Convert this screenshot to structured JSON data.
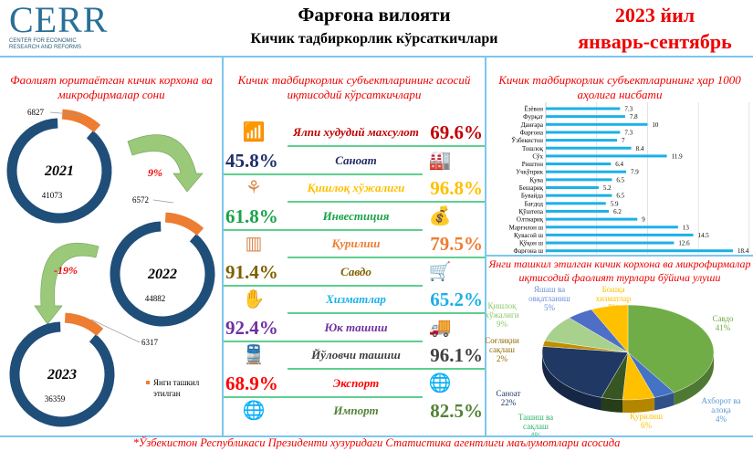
{
  "header": {
    "logo_big": "CERR",
    "logo_small_1": "CENTER FOR ECONOMIC",
    "logo_small_2": "RESEARCH AND REFORMS",
    "title": "Фарғона вилояти",
    "subtitle": "Кичик тадбиркорлик кўрсаткичлари",
    "year": "2023 йил",
    "period": "январь-сентябрь"
  },
  "left": {
    "title": "Фаолият юритаётган кичик корхона ва микрофирмалар сони",
    "years": [
      {
        "year": "2021",
        "total": "41073",
        "new": "6827"
      },
      {
        "year": "2022",
        "total": "44882",
        "new": "6572"
      },
      {
        "year": "2023",
        "total": "36359",
        "new": "6317"
      }
    ],
    "growth": [
      "9%",
      "-19%"
    ],
    "legend": "Янги ташкил этилган",
    "colors": {
      "total": "#1f4e79",
      "new": "#ed7d31",
      "arrow": "#9bc97a"
    }
  },
  "middle": {
    "title": "Кичик тадбиркорлик субъектларининг асосий иқтисодий кўрсаткичлари",
    "rows": [
      {
        "label": "Ялпи худудий махсулот",
        "value": "69.6%",
        "color": "#c00000",
        "icon": "chart-growth-icon",
        "side": "left"
      },
      {
        "label": "Саноат",
        "value": "45.8%",
        "color": "#1f2d6b",
        "icon": "factory-icon",
        "side": "right"
      },
      {
        "label": "Қишлоқ хўжалиги",
        "value": "96.8%",
        "color": "#ffc000",
        "icon": "shovel-plant-icon",
        "side": "left"
      },
      {
        "label": "Инвестиция",
        "value": "61.8%",
        "color": "#1aa34a",
        "icon": "money-hand-icon",
        "side": "right"
      },
      {
        "label": "Қурилиш",
        "value": "79.5%",
        "color": "#ed7d31",
        "icon": "building-icon",
        "side": "left"
      },
      {
        "label": "Савдо",
        "value": "91.4%",
        "color": "#7f6000",
        "icon": "cart-icon",
        "side": "right"
      },
      {
        "label": "Хизматлар",
        "value": "65.2%",
        "color": "#1cb0e8",
        "icon": "service-hand-icon",
        "side": "left"
      },
      {
        "label": "Юк ташиш",
        "value": "92.4%",
        "color": "#7030a0",
        "icon": "truck-icon",
        "side": "right"
      },
      {
        "label": "Йўловчи ташиш",
        "value": "96.1%",
        "color": "#404040",
        "icon": "train-icon",
        "side": "left"
      },
      {
        "label": "Экспорт",
        "value": "68.9%",
        "color": "#ff0000",
        "icon": "globe-export-icon",
        "side": "right"
      },
      {
        "label": "Импорт",
        "value": "82.5%",
        "color": "#548235",
        "icon": "globe-cursor-icon",
        "side": "left"
      }
    ]
  },
  "chart_data": [
    {
      "type": "bar",
      "title": "Кичик тадбиркорлик субъектларининг ҳар 1000 аҳолига нисбати",
      "orientation": "horizontal",
      "categories": [
        "Ёзёвон",
        "Фурқат",
        "Данғара",
        "Фарғона",
        "Ўзбекистон",
        "Тошлоқ",
        "Сўх",
        "Риштон",
        "Учкўприк",
        "Қува",
        "Бешариқ",
        "Бувайда",
        "Бағдод",
        "Қўштепа",
        "Олтиариқ",
        "Марғилон ш",
        "Қувасой ш",
        "Қўқон ш",
        "Фарғона ш"
      ],
      "values": [
        7.3,
        7.8,
        10,
        7.3,
        7,
        8.4,
        11.9,
        6.4,
        7.9,
        6.5,
        5.2,
        6.5,
        5.9,
        6.2,
        9,
        13,
        14.5,
        12.6,
        18.4
      ],
      "xlim": [
        0,
        20
      ],
      "grid": true,
      "color": "#1cb0e8"
    },
    {
      "type": "pie",
      "title": "Янги ташкил этилган кичик корхона ва микрофирмалар иқтисодий фаолият турлари бўйича улуши",
      "slices": [
        {
          "name": "Савдо",
          "value": 41,
          "label": "41%",
          "color": "#70ad47",
          "text_color": "#70ad47"
        },
        {
          "name": "Ахборот ва алоқа",
          "value": 4,
          "label": "4%",
          "color": "#4472c4",
          "text_color": "#5b9bd5"
        },
        {
          "name": "Қурилиш",
          "value": 6,
          "label": "6%",
          "color": "#ffc000",
          "text_color": "#ffc000"
        },
        {
          "name": "Ташиш ва сақлаш",
          "value": 4,
          "label": "4%",
          "color": "#375623",
          "text_color": "#2db36b"
        },
        {
          "name": "Саноат",
          "value": 22,
          "label": "22%",
          "color": "#203864",
          "text_color": "#203864"
        },
        {
          "name": "Соғлиқни сақлаш",
          "value": 2,
          "label": "2%",
          "color": "#bf8f00",
          "text_color": "#8f6a00"
        },
        {
          "name": "Қишлоқ хўжалиги",
          "value": 9,
          "label": "9%",
          "color": "#a9d18e",
          "text_color": "#8fc76a"
        },
        {
          "name": "Яшаш ва овқатланиш",
          "value": 5,
          "label": "5%",
          "color": "#4f6fc6",
          "text_color": "#6f8fd6"
        },
        {
          "name": "Бошқа хизматлар",
          "value": 7,
          "label": "7%",
          "color": "#ffc000",
          "text_color": "#ffc000"
        }
      ]
    }
  ],
  "footer": "*Ўзбекистон Республикаси Президенти хузуридаги Статистика агентлиги маълумотлари асосида"
}
